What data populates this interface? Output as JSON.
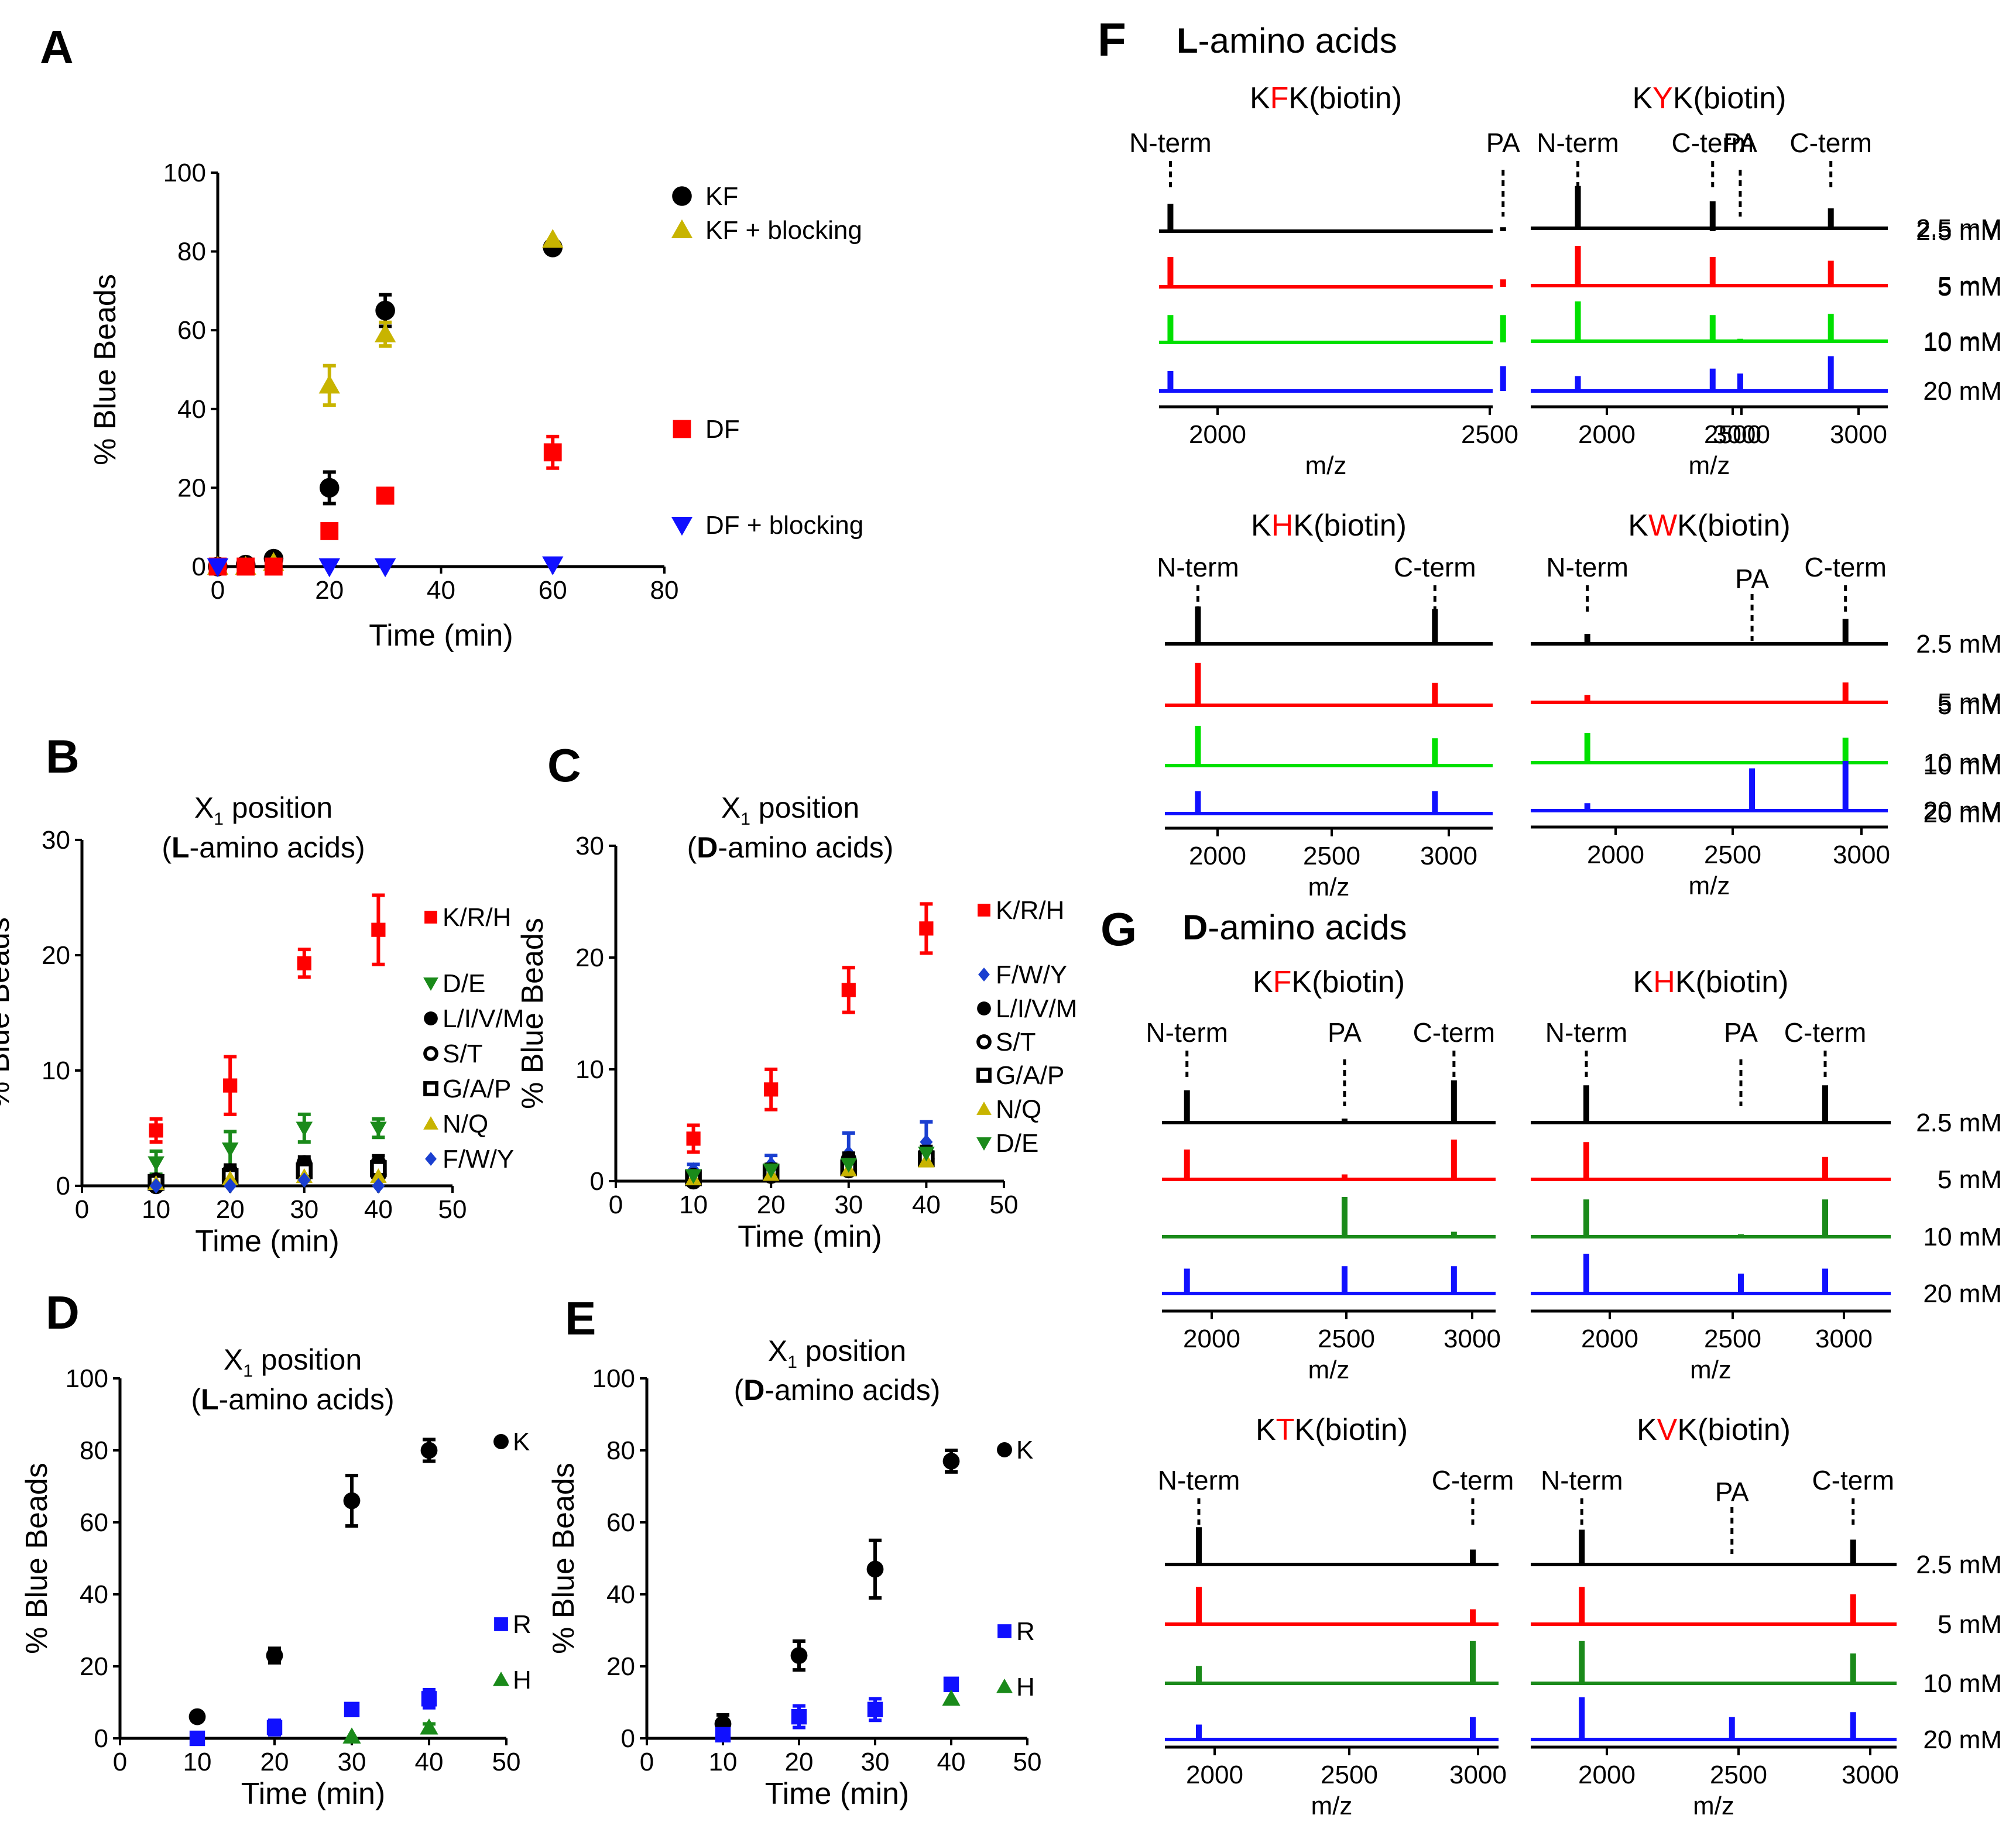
{
  "figure_note": "Multi-panel figure",
  "panels": {
    "A": {
      "letter": "A"
    },
    "B": {
      "letter": "B"
    },
    "C": {
      "letter": "C"
    },
    "D": {
      "letter": "D"
    },
    "E": {
      "letter": "E"
    },
    "F": {
      "letter": "F",
      "heading": "L-amino acids",
      "heading_bold": "L",
      "heading_rest": "-amino acids"
    },
    "G": {
      "letter": "G",
      "heading": "D-amino acids",
      "heading_bold": "D",
      "heading_rest": "-amino acids"
    }
  },
  "colors": {
    "black": "#000000",
    "red": "#ff0000",
    "green": "#00e000",
    "darkgreen": "#1a8a1a",
    "blue": "#1010ff",
    "olive": "#c8b400",
    "navy": "#1a3fd0"
  },
  "chart_data": [
    {
      "id": "A",
      "type": "scatter",
      "title": "",
      "xlabel": "Time (min)",
      "ylabel": "% Blue Beads",
      "xlim": [
        0,
        80
      ],
      "ylim": [
        0,
        100
      ],
      "xticks": [
        0,
        20,
        40,
        60,
        80
      ],
      "yticks": [
        0,
        20,
        40,
        60,
        80,
        100
      ],
      "series": [
        {
          "name": "KF",
          "marker": "circle",
          "color": "#000000",
          "points": [
            [
              0,
              0,
              0
            ],
            [
              5,
              0.5,
              0
            ],
            [
              10,
              2,
              0
            ],
            [
              20,
              20,
              4
            ],
            [
              30,
              65,
              4
            ],
            [
              60,
              81,
              1
            ]
          ]
        },
        {
          "name": "KF + blocking",
          "marker": "triangle",
          "color": "#c8b400",
          "points": [
            [
              0,
              0,
              0
            ],
            [
              5,
              0,
              0
            ],
            [
              10,
              1,
              0
            ],
            [
              20,
              46,
              5
            ],
            [
              30,
              59,
              3
            ],
            [
              60,
              83,
              0
            ]
          ]
        },
        {
          "name": "DF",
          "marker": "square",
          "color": "#ff0000",
          "points": [
            [
              0,
              0,
              0
            ],
            [
              5,
              0,
              0
            ],
            [
              10,
              0,
              0
            ],
            [
              20,
              9,
              1
            ],
            [
              30,
              18,
              1
            ],
            [
              60,
              29,
              4
            ]
          ]
        },
        {
          "name": "DF + blocking",
          "marker": "triangle-down",
          "color": "#1010ff",
          "points": [
            [
              0,
              0,
              0
            ],
            [
              20,
              0,
              0
            ],
            [
              30,
              0,
              0
            ],
            [
              60,
              0.5,
              0
            ]
          ]
        }
      ]
    },
    {
      "id": "B",
      "type": "scatter",
      "title_line1": "X",
      "title_sub": "1",
      "title_line1_rest": " position",
      "title_line2_bold": "L",
      "title_line2_rest": "-amino acids",
      "xlabel": "Time (min)",
      "ylabel": "% Blue Beads",
      "xlim": [
        0,
        50
      ],
      "ylim": [
        0,
        30
      ],
      "xticks": [
        0,
        10,
        20,
        30,
        40,
        50
      ],
      "yticks": [
        0,
        10,
        20,
        30
      ],
      "series": [
        {
          "name": "K/R/H",
          "marker": "square",
          "color": "#ff0000",
          "points": [
            [
              10,
              4.8,
              1
            ],
            [
              20,
              8.7,
              2.5
            ],
            [
              30,
              19.3,
              1.2
            ],
            [
              40,
              22.2,
              3
            ]
          ]
        },
        {
          "name": "D/E",
          "marker": "triangle-down",
          "color": "#1a8a1a",
          "points": [
            [
              10,
              2,
              1
            ],
            [
              20,
              3.2,
              1.5
            ],
            [
              30,
              5,
              1.2
            ],
            [
              40,
              5,
              0.8
            ]
          ]
        },
        {
          "name": "L/I/V/M",
          "marker": "circle",
          "color": "#000000",
          "points": [
            [
              10,
              0.5,
              0.3
            ],
            [
              20,
              1.3,
              0.5
            ],
            [
              30,
              2,
              0.5
            ],
            [
              40,
              2,
              0.6
            ]
          ]
        },
        {
          "name": "S/T",
          "marker": "circle-open",
          "color": "#000000",
          "points": [
            [
              10,
              0,
              0
            ],
            [
              20,
              0.5,
              0
            ],
            [
              30,
              1,
              0
            ],
            [
              40,
              1,
              0
            ]
          ]
        },
        {
          "name": "G/A/P",
          "marker": "square-open",
          "color": "#000000",
          "points": [
            [
              10,
              0.3,
              0
            ],
            [
              20,
              0.8,
              0
            ],
            [
              30,
              1.3,
              0
            ],
            [
              40,
              1.5,
              0
            ]
          ]
        },
        {
          "name": "N/Q",
          "marker": "triangle",
          "color": "#c8b400",
          "points": [
            [
              10,
              0.2,
              0
            ],
            [
              20,
              0.6,
              0
            ],
            [
              30,
              0.8,
              0
            ],
            [
              40,
              0.8,
              0
            ]
          ]
        },
        {
          "name": "F/W/Y",
          "marker": "diamond",
          "color": "#1a3fd0",
          "points": [
            [
              10,
              0,
              0
            ],
            [
              20,
              0,
              0
            ],
            [
              30,
              0.5,
              0
            ],
            [
              40,
              0,
              0
            ]
          ]
        }
      ]
    },
    {
      "id": "C",
      "type": "scatter",
      "title_line1": "X",
      "title_sub": "1",
      "title_line1_rest": " position",
      "title_line2_bold": "D",
      "title_line2_rest": "-amino acids",
      "xlabel": "Time (min)",
      "ylabel": "% Blue Beads",
      "xlim": [
        0,
        50
      ],
      "ylim": [
        0,
        30
      ],
      "xticks": [
        0,
        10,
        20,
        30,
        40,
        50
      ],
      "yticks": [
        0,
        10,
        20,
        30
      ],
      "series": [
        {
          "name": "K/R/H",
          "marker": "square",
          "color": "#ff0000",
          "points": [
            [
              10,
              3.8,
              1.2
            ],
            [
              20,
              8.2,
              1.8
            ],
            [
              30,
              17.1,
              2
            ],
            [
              40,
              22.6,
              2.2
            ]
          ]
        },
        {
          "name": "F/W/Y",
          "marker": "diamond",
          "color": "#1a3fd0",
          "points": [
            [
              10,
              1,
              0.5
            ],
            [
              20,
              1.5,
              0.8
            ],
            [
              30,
              2.5,
              1.8
            ],
            [
              40,
              3.5,
              1.8
            ]
          ]
        },
        {
          "name": "L/I/V/M",
          "marker": "circle",
          "color": "#000000",
          "points": [
            [
              10,
              0.5,
              0.3
            ],
            [
              20,
              1,
              0.5
            ],
            [
              30,
              2,
              0.5
            ],
            [
              40,
              2.5,
              0.6
            ]
          ]
        },
        {
          "name": "S/T",
          "marker": "circle-open",
          "color": "#000000",
          "points": [
            [
              10,
              0,
              0
            ],
            [
              20,
              0.5,
              0
            ],
            [
              30,
              1,
              0
            ],
            [
              40,
              2,
              0
            ]
          ]
        },
        {
          "name": "G/A/P",
          "marker": "square-open",
          "color": "#000000",
          "points": [
            [
              10,
              0.3,
              0
            ],
            [
              20,
              0.8,
              0
            ],
            [
              30,
              1.2,
              0
            ],
            [
              40,
              2,
              0
            ]
          ]
        },
        {
          "name": "N/Q",
          "marker": "triangle",
          "color": "#c8b400",
          "points": [
            [
              10,
              0.2,
              0
            ],
            [
              20,
              0.6,
              0
            ],
            [
              30,
              1,
              0
            ],
            [
              40,
              1.8,
              0
            ]
          ]
        },
        {
          "name": "D/E",
          "marker": "triangle-down",
          "color": "#1a8a1a",
          "points": [
            [
              10,
              0.5,
              0
            ],
            [
              20,
              1,
              0
            ],
            [
              30,
              1.5,
              0
            ],
            [
              40,
              2.5,
              0
            ]
          ]
        }
      ]
    },
    {
      "id": "D",
      "type": "scatter",
      "title_line1": "X",
      "title_sub": "1",
      "title_line1_rest": " position",
      "title_line2_bold": "L",
      "title_line2_rest": "-amino acids",
      "xlabel": "Time (min)",
      "ylabel": "% Blue Beads",
      "xlim": [
        0,
        50
      ],
      "ylim": [
        0,
        100
      ],
      "xticks": [
        0,
        10,
        20,
        30,
        40,
        50
      ],
      "yticks": [
        0,
        20,
        40,
        60,
        80,
        100
      ],
      "series": [
        {
          "name": "K",
          "marker": "circle",
          "color": "#000000",
          "points": [
            [
              10,
              6,
              0
            ],
            [
              20,
              23,
              2
            ],
            [
              30,
              66,
              7
            ],
            [
              40,
              80,
              3
            ]
          ]
        },
        {
          "name": "R",
          "marker": "square",
          "color": "#1010ff",
          "points": [
            [
              10,
              0,
              0
            ],
            [
              20,
              3,
              2
            ],
            [
              30,
              8,
              1.5
            ],
            [
              40,
              11,
              2.5
            ]
          ]
        },
        {
          "name": "H",
          "marker": "triangle",
          "color": "#1a8a1a",
          "points": [
            [
              30,
              0.5,
              0
            ],
            [
              40,
              3,
              1
            ]
          ]
        }
      ]
    },
    {
      "id": "E",
      "type": "scatter",
      "title_line1": "X",
      "title_sub": "1",
      "title_line1_rest": " position",
      "title_line2_bold": "D",
      "title_line2_rest": "-amino acids",
      "xlabel": "Time (min)",
      "ylabel": "% Blue Beads",
      "xlim": [
        0,
        50
      ],
      "ylim": [
        0,
        100
      ],
      "xticks": [
        0,
        10,
        20,
        30,
        40,
        50
      ],
      "yticks": [
        0,
        20,
        40,
        60,
        80,
        100
      ],
      "series": [
        {
          "name": "K",
          "marker": "circle",
          "color": "#000000",
          "points": [
            [
              10,
              4,
              2.5
            ],
            [
              20,
              23,
              4
            ],
            [
              30,
              47,
              8
            ],
            [
              40,
              77,
              3
            ]
          ]
        },
        {
          "name": "R",
          "marker": "square",
          "color": "#1010ff",
          "points": [
            [
              10,
              1,
              0
            ],
            [
              20,
              6,
              3
            ],
            [
              30,
              8,
              3
            ],
            [
              40,
              15,
              1
            ]
          ]
        },
        {
          "name": "H",
          "marker": "triangle",
          "color": "#1a8a1a",
          "points": [
            [
              40,
              11,
              0
            ]
          ]
        }
      ]
    }
  ],
  "ms_labels": {
    "xlabel": "m/z",
    "xticks": [
      2000,
      2500,
      3000
    ],
    "concentrations": [
      "2.5 mM",
      "5 mM",
      "10 mM",
      "20 mM"
    ],
    "nterm": "N-term",
    "cterm": "C-term",
    "pa": "PA"
  },
  "ms_panels": [
    {
      "id": "F1",
      "pre": "K",
      "aa": "F",
      "post": "K(biotin)",
      "has_pa": true,
      "n": 1910,
      "pa": 2545,
      "c": 2945,
      "heights": [
        [
          0.55,
          0.08,
          0.6
        ],
        [
          0.6,
          0.15,
          0.6
        ],
        [
          0.55,
          0.55,
          0.55
        ],
        [
          0.4,
          0.5,
          0.45
        ]
      ]
    },
    {
      "id": "F2",
      "pre": "K",
      "aa": "Y",
      "post": "K(biotin)",
      "has_pa": true,
      "n": 1885,
      "pa": 2530,
      "c": 2890,
      "heights": [
        [
          0.85,
          0,
          0.4
        ],
        [
          0.8,
          0,
          0.5
        ],
        [
          0.8,
          0.05,
          0.55
        ],
        [
          0.3,
          0.35,
          0.7
        ]
      ]
    },
    {
      "id": "F3",
      "pre": "K",
      "aa": "H",
      "post": "K(biotin)",
      "has_pa": false,
      "n": 1915,
      "pa": 0,
      "c": 2940,
      "heights": [
        [
          0.75,
          0,
          0.7
        ],
        [
          0.85,
          0,
          0.45
        ],
        [
          0.8,
          0,
          0.55
        ],
        [
          0.45,
          0,
          0.45
        ]
      ]
    },
    {
      "id": "F4",
      "pre": "K",
      "aa": "W",
      "post": "K(biotin)",
      "has_pa": true,
      "n": 1885,
      "pa": 2555,
      "c": 2935,
      "heights": [
        [
          0.2,
          0,
          0.5
        ],
        [
          0.15,
          0,
          0.4
        ],
        [
          0.6,
          0,
          0.5
        ],
        [
          0.15,
          0.85,
          1
        ]
      ]
    },
    {
      "id": "G1",
      "pre": "K",
      "aa": "F",
      "post": "K(biotin)",
      "has_pa": true,
      "n": 1905,
      "pa": 2510,
      "c": 2930,
      "heights": [
        [
          0.65,
          0.08,
          0.85
        ],
        [
          0.6,
          0.1,
          0.8
        ],
        [
          0,
          0.8,
          0.1
        ],
        [
          0.5,
          0.55,
          0.55
        ]
      ]
    },
    {
      "id": "G2",
      "pre": "K",
      "aa": "H",
      "post": "K(biotin)",
      "has_pa": true,
      "n": 1900,
      "pa": 2560,
      "c": 2920,
      "heights": [
        [
          0.75,
          0,
          0.75
        ],
        [
          0.75,
          0,
          0.45
        ],
        [
          0.75,
          0.05,
          0.75
        ],
        [
          0.8,
          0.4,
          0.5
        ]
      ]
    },
    {
      "id": "G3",
      "pre": "K",
      "aa": "T",
      "post": "K(biotin)",
      "has_pa": false,
      "n": 1940,
      "pa": 0,
      "c": 2980,
      "heights": [
        [
          0.75,
          0,
          0.3
        ],
        [
          0.75,
          0,
          0.3
        ],
        [
          0.35,
          0,
          0.85
        ],
        [
          0.3,
          0,
          0.45
        ]
      ]
    },
    {
      "id": "G4",
      "pre": "K",
      "aa": "V",
      "post": "K(biotin)",
      "has_pa": true,
      "n": 1905,
      "pa": 2475,
      "c": 2935,
      "heights": [
        [
          0.7,
          0,
          0.5
        ],
        [
          0.75,
          0,
          0.6
        ],
        [
          0.85,
          0,
          0.6
        ],
        [
          0.85,
          0.45,
          0.55
        ]
      ]
    }
  ]
}
